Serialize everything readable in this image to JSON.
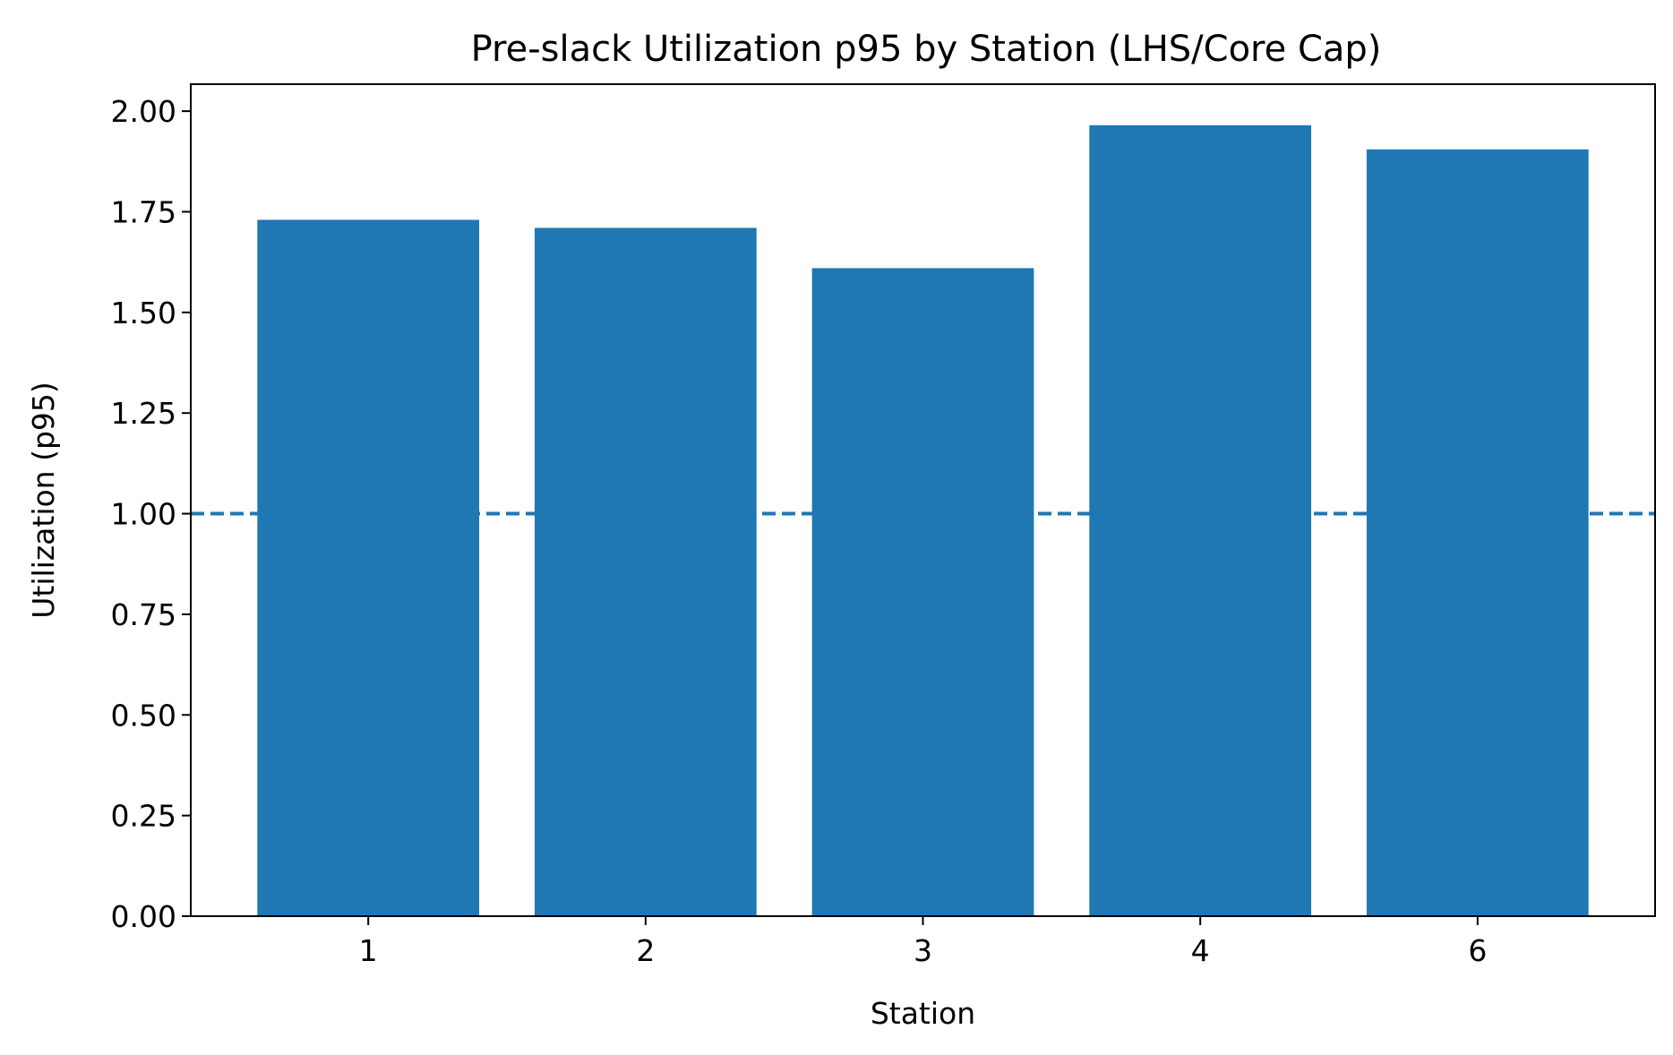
{
  "chart_data": {
    "type": "bar",
    "title": "Pre-slack Utilization p95 by Station (LHS/Core Cap)",
    "xlabel": "Station",
    "ylabel": "Utilization (p95)",
    "categories": [
      "1",
      "2",
      "3",
      "4",
      "6"
    ],
    "values": [
      1.73,
      1.71,
      1.61,
      1.965,
      1.905
    ],
    "ylim": [
      0,
      2.067
    ],
    "yticks": [
      0.0,
      0.25,
      0.5,
      0.75,
      1.0,
      1.25,
      1.5,
      1.75,
      2.0
    ],
    "ytick_labels": [
      "0.00",
      "0.25",
      "0.50",
      "0.75",
      "1.00",
      "1.25",
      "1.50",
      "1.75",
      "2.00"
    ],
    "reference_line": {
      "y": 1.0,
      "style": "dashed"
    },
    "grid": false,
    "bar_color": "#1f77b4",
    "line_color": "#1f77b4"
  }
}
